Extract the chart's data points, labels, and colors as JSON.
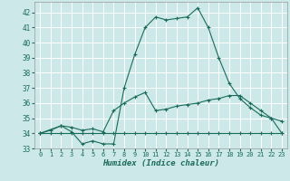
{
  "xlabel": "Humidex (Indice chaleur)",
  "background_color": "#cce8e8",
  "grid_color": "#ffffff",
  "line_color": "#1a6b5a",
  "xlim": [
    -0.5,
    23.5
  ],
  "ylim": [
    33,
    42.7
  ],
  "yticks": [
    33,
    34,
    35,
    36,
    37,
    38,
    39,
    40,
    41,
    42
  ],
  "xticks": [
    0,
    1,
    2,
    3,
    4,
    5,
    6,
    7,
    8,
    9,
    10,
    11,
    12,
    13,
    14,
    15,
    16,
    17,
    18,
    19,
    20,
    21,
    22,
    23
  ],
  "series1_x": [
    0,
    1,
    2,
    3,
    4,
    5,
    6,
    7,
    8,
    9,
    10,
    11,
    12,
    13,
    14,
    15,
    16,
    17,
    18,
    19,
    20,
    21,
    22,
    23
  ],
  "series1_y": [
    34.0,
    34.0,
    34.0,
    34.0,
    34.0,
    34.0,
    34.0,
    34.0,
    34.0,
    34.0,
    34.0,
    34.0,
    34.0,
    34.0,
    34.0,
    34.0,
    34.0,
    34.0,
    34.0,
    34.0,
    34.0,
    34.0,
    34.0,
    34.0
  ],
  "series2_x": [
    0,
    1,
    2,
    3,
    4,
    5,
    6,
    7,
    8,
    9,
    10,
    11,
    12,
    13,
    14,
    15,
    16,
    17,
    18,
    19,
    20,
    21,
    22,
    23
  ],
  "series2_y": [
    34.0,
    34.2,
    34.5,
    34.4,
    34.2,
    34.3,
    34.1,
    35.5,
    36.0,
    36.4,
    36.7,
    35.5,
    35.6,
    35.8,
    35.9,
    36.0,
    36.2,
    36.3,
    36.5,
    36.5,
    36.0,
    35.5,
    35.0,
    34.0
  ],
  "series3_x": [
    0,
    2,
    3,
    4,
    5,
    6,
    7,
    8,
    9,
    10,
    11,
    12,
    13,
    14,
    15,
    16,
    17,
    18,
    19,
    20,
    21,
    22,
    23
  ],
  "series3_y": [
    34.0,
    34.5,
    34.1,
    33.3,
    33.5,
    33.3,
    33.3,
    37.0,
    39.2,
    41.0,
    41.7,
    41.5,
    41.6,
    41.7,
    42.3,
    41.0,
    39.0,
    37.3,
    36.3,
    35.7,
    35.2,
    35.0,
    34.8
  ]
}
